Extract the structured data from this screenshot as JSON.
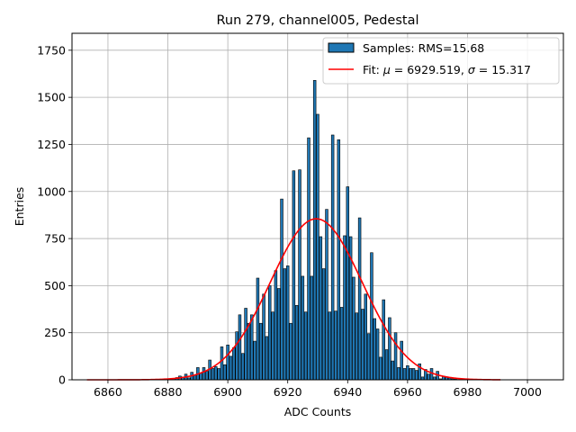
{
  "chart_data": {
    "type": "bar",
    "title": "Run 279, channel005, Pedestal",
    "xlabel": "ADC Counts",
    "ylabel": "Entries",
    "xlim": [
      6848,
      7012
    ],
    "ylim": [
      0,
      1840
    ],
    "xticks": [
      6860,
      6880,
      6900,
      6920,
      6940,
      6960,
      6980,
      7000
    ],
    "yticks": [
      0,
      250,
      500,
      750,
      1000,
      1250,
      1500,
      1750
    ],
    "grid": true,
    "legend_position": "top-right",
    "bar_color": "#1f77b4",
    "bar_edge_color": "#000000",
    "fit_color": "#ff0000",
    "histogram": {
      "name": "Samples: RMS=15.68",
      "x": [
        6880,
        6881,
        6882,
        6883,
        6884,
        6885,
        6886,
        6887,
        6888,
        6889,
        6890,
        6891,
        6892,
        6893,
        6894,
        6895,
        6896,
        6897,
        6898,
        6899,
        6900,
        6901,
        6902,
        6903,
        6904,
        6905,
        6906,
        6907,
        6908,
        6909,
        6910,
        6911,
        6912,
        6913,
        6914,
        6915,
        6916,
        6917,
        6918,
        6919,
        6920,
        6921,
        6922,
        6923,
        6924,
        6925,
        6926,
        6927,
        6928,
        6929,
        6930,
        6931,
        6932,
        6933,
        6934,
        6935,
        6936,
        6937,
        6938,
        6939,
        6940,
        6941,
        6942,
        6943,
        6944,
        6945,
        6946,
        6947,
        6948,
        6949,
        6950,
        6951,
        6952,
        6953,
        6954,
        6955,
        6956,
        6957,
        6958,
        6959,
        6960,
        6961,
        6962,
        6963,
        6964,
        6965,
        6966,
        6967,
        6968,
        6969,
        6970,
        6971,
        6972,
        6973,
        6974,
        6975,
        6976,
        6977,
        6978
      ],
      "values": [
        3,
        5,
        8,
        12,
        20,
        15,
        30,
        10,
        40,
        25,
        65,
        35,
        65,
        45,
        105,
        60,
        70,
        60,
        175,
        80,
        185,
        125,
        170,
        255,
        345,
        140,
        380,
        300,
        345,
        205,
        540,
        300,
        455,
        230,
        500,
        360,
        580,
        485,
        960,
        590,
        605,
        300,
        1110,
        395,
        1115,
        550,
        360,
        1285,
        550,
        1590,
        1410,
        760,
        590,
        905,
        360,
        1300,
        365,
        1275,
        385,
        765,
        1025,
        760,
        545,
        355,
        860,
        375,
        455,
        245,
        675,
        325,
        270,
        120,
        425,
        160,
        330,
        100,
        250,
        65,
        205,
        60,
        75,
        60,
        60,
        50,
        85,
        15,
        55,
        30,
        60,
        15,
        45,
        5,
        20,
        15,
        10,
        5,
        3,
        2,
        2
      ]
    },
    "fit": {
      "name": "Fit: μ = 6929.519, σ = 15.317",
      "label_prefix": "Fit: ",
      "mu_value": "6929.519",
      "sigma_value": "15.317",
      "mu": 6929.519,
      "sigma": 15.317,
      "amplitude": 855,
      "x_range": [
        6853,
        6991
      ]
    }
  }
}
